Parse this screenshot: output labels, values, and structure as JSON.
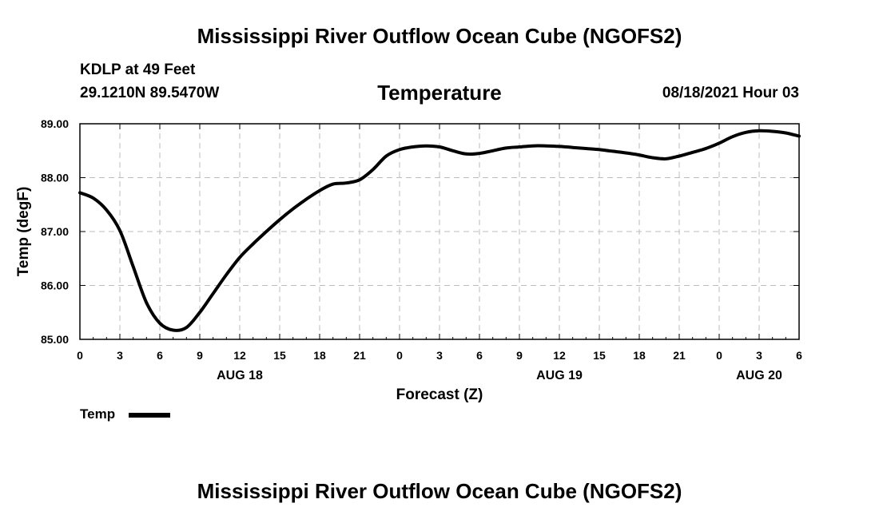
{
  "header": {
    "title": "Mississippi River Outflow Ocean Cube (NGOFS2)",
    "station": "KDLP at 49 Feet",
    "coords": "29.1210N  89.5470W",
    "subtitle": "Temperature",
    "datetime": "08/18/2021 Hour 03"
  },
  "footer": {
    "title": "Mississippi River Outflow Ocean Cube (NGOFS2)"
  },
  "legend": {
    "label": "Temp"
  },
  "chart_data": {
    "type": "line",
    "title": "Temperature",
    "xlabel": "Forecast (Z)",
    "ylabel": "Temp (degF)",
    "xlim": [
      0,
      54
    ],
    "ylim": [
      85.0,
      89.0
    ],
    "grid": true,
    "x_tick_labels": [
      "0",
      "3",
      "6",
      "9",
      "12",
      "15",
      "18",
      "21",
      "0",
      "3",
      "6",
      "9",
      "12",
      "15",
      "18",
      "21",
      "0",
      "3",
      "6"
    ],
    "y_tick_labels": [
      "85.00",
      "86.00",
      "87.00",
      "88.00",
      "89.00"
    ],
    "date_labels": [
      {
        "label": "AUG 18",
        "hour": 12
      },
      {
        "label": "AUG 19",
        "hour": 36
      },
      {
        "label": "AUG 20",
        "hour": 51
      }
    ],
    "series": [
      {
        "name": "Temp",
        "color": "#000000",
        "x": [
          0,
          1,
          2,
          3,
          4,
          5,
          6,
          7,
          8,
          9,
          10,
          11,
          12,
          13,
          14,
          15,
          16,
          17,
          18,
          19,
          20,
          21,
          22,
          23,
          24,
          25,
          26,
          27,
          28,
          29,
          30,
          31,
          32,
          33,
          34,
          35,
          36,
          37,
          38,
          39,
          40,
          41,
          42,
          43,
          44,
          45,
          46,
          47,
          48,
          49,
          50,
          51,
          52,
          53,
          54
        ],
        "values": [
          87.72,
          87.62,
          87.4,
          87.02,
          86.35,
          85.68,
          85.3,
          85.17,
          85.22,
          85.5,
          85.85,
          86.2,
          86.52,
          86.77,
          87.0,
          87.22,
          87.42,
          87.6,
          87.76,
          87.88,
          87.9,
          87.96,
          88.15,
          88.4,
          88.52,
          88.57,
          88.59,
          88.57,
          88.5,
          88.44,
          88.45,
          88.5,
          88.55,
          88.57,
          88.59,
          88.59,
          88.58,
          88.56,
          88.54,
          88.52,
          88.49,
          88.46,
          88.42,
          88.37,
          88.35,
          88.4,
          88.47,
          88.54,
          88.64,
          88.76,
          88.84,
          88.87,
          88.86,
          88.83,
          88.77
        ]
      }
    ]
  }
}
